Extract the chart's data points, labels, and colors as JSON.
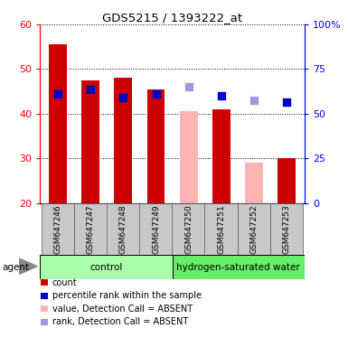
{
  "title": "GDS5215 / 1393222_at",
  "samples": [
    "GSM647246",
    "GSM647247",
    "GSM647248",
    "GSM647249",
    "GSM647250",
    "GSM647251",
    "GSM647252",
    "GSM647253"
  ],
  "bar_values": [
    55.5,
    47.5,
    48.0,
    45.5,
    40.5,
    41.0,
    29.0,
    30.0
  ],
  "bar_colors": [
    "#cc0000",
    "#cc0000",
    "#cc0000",
    "#cc0000",
    "#ffb3b3",
    "#cc0000",
    "#ffb3b3",
    "#cc0000"
  ],
  "dot_values": [
    44.5,
    45.5,
    43.5,
    44.5,
    null,
    44.0,
    null,
    42.5
  ],
  "dot_colors": [
    "#0000cc",
    "#0000cc",
    "#0000cc",
    "#0000cc",
    null,
    "#0000cc",
    null,
    "#0000cc"
  ],
  "rank_dot_values": [
    null,
    null,
    null,
    null,
    46.0,
    null,
    43.0,
    null
  ],
  "rank_dot_colors": [
    null,
    null,
    null,
    null,
    "#9999dd",
    null,
    "#9999dd",
    null
  ],
  "ylim_left": [
    20,
    60
  ],
  "ylim_right": [
    0,
    100
  ],
  "yticks_left": [
    20,
    30,
    40,
    50,
    60
  ],
  "yticks_right": [
    0,
    25,
    50,
    75,
    100
  ],
  "ytick_labels_right": [
    "0",
    "25",
    "50",
    "75",
    "100%"
  ],
  "group_labels": [
    "control",
    "hydrogen-saturated water"
  ],
  "group_colors": [
    "#aaffaa",
    "#66ee66"
  ],
  "legend_items": [
    {
      "label": "count",
      "color": "#cc0000"
    },
    {
      "label": "percentile rank within the sample",
      "color": "#0000cc"
    },
    {
      "label": "value, Detection Call = ABSENT",
      "color": "#ffb3b3"
    },
    {
      "label": "rank, Detection Call = ABSENT",
      "color": "#9999dd"
    }
  ],
  "bar_width": 0.55,
  "dot_size": 28
}
